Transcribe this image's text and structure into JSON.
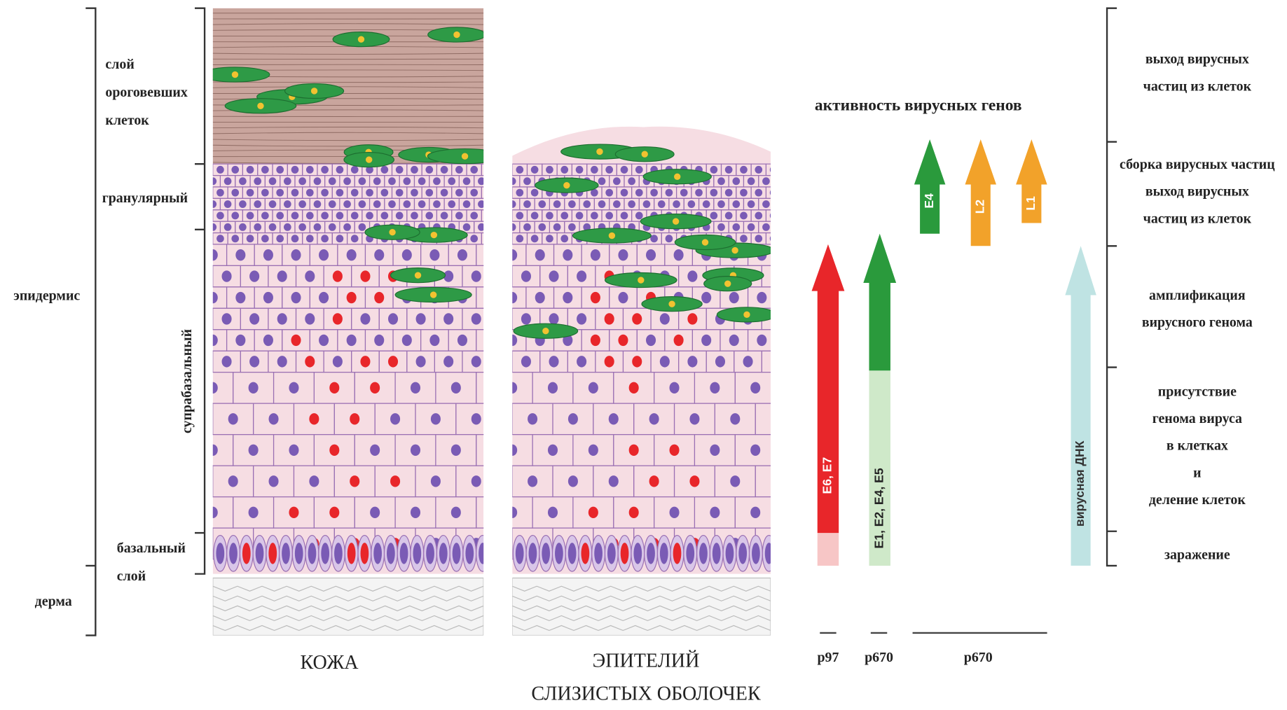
{
  "layers": {
    "keratinized": [
      "слой",
      "ороговевших",
      "клеток"
    ],
    "granular": "гранулярный",
    "suprabasal": "супрабазальный",
    "basal": [
      "базальный",
      "слой"
    ],
    "epidermis": "эпидермис",
    "dermis": "дерма"
  },
  "tissues": {
    "skin": "КОЖА",
    "mucosa": [
      "ЭПИТЕЛИЙ",
      "СЛИЗИСТЫХ ОБОЛОЧЕК"
    ]
  },
  "genes": {
    "title": "активность вирусных генов",
    "arrows": [
      "E6, E7",
      "E1, E2, E4, E5",
      "E4",
      "L2",
      "L1",
      "вирусная ДНК"
    ],
    "promoters": [
      "p97",
      "p670",
      "p670"
    ]
  },
  "stages": [
    [
      "выход вирусных",
      "частиц из клеток"
    ],
    [
      "сборка вирусных частиц",
      "выход вирусных",
      "частиц из клеток"
    ],
    [
      "амплификация",
      "вирусного генома"
    ],
    [
      "присутствие",
      "генома вируса",
      "в клетках",
      "и",
      "деление клеток"
    ],
    [
      "заражение"
    ]
  ]
}
